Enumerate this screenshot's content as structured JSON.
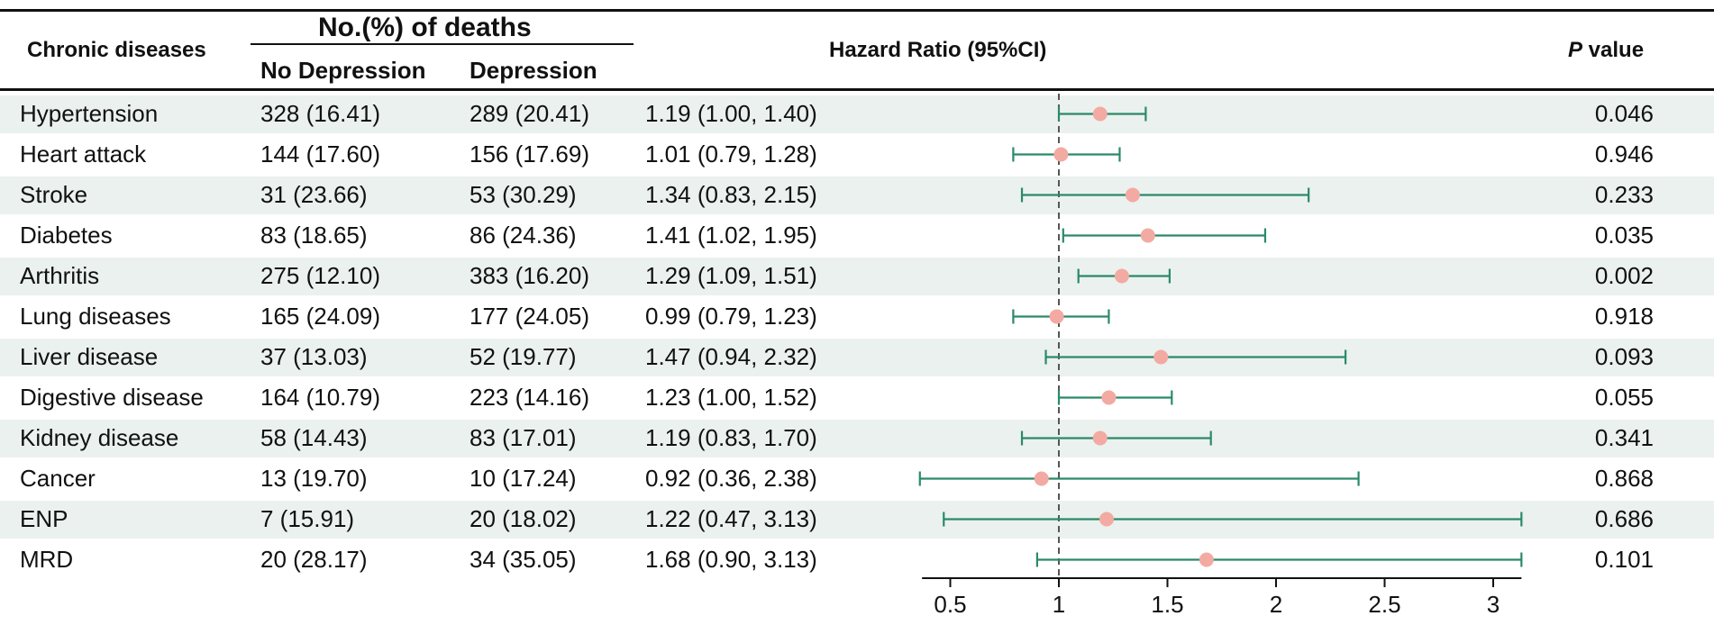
{
  "header": {
    "col_disease": "Chronic diseases",
    "group_title": "No.(%) of deaths",
    "col_no_dep": "No Depression",
    "col_dep": "Depression",
    "col_hr": "Hazard Ratio (95%CI)",
    "col_p_italic": "P",
    "col_p_rest": " value"
  },
  "colors": {
    "stripe": "#ebf1ef",
    "ci_line": "#2a8a68",
    "point": "#f2aaa2",
    "ref_line": "#555555"
  },
  "rows": [
    {
      "disease": "Hypertension",
      "no_dep": "328 (16.41)",
      "dep": "289 (20.41)",
      "hr_text": "1.19 (1.00, 1.40)",
      "p": "0.046"
    },
    {
      "disease": "Heart attack",
      "no_dep": "144 (17.60)",
      "dep": "156 (17.69)",
      "hr_text": "1.01 (0.79, 1.28)",
      "p": "0.946"
    },
    {
      "disease": "Stroke",
      "no_dep": "31 (23.66)",
      "dep": "53 (30.29)",
      "hr_text": "1.34 (0.83, 2.15)",
      "p": "0.233"
    },
    {
      "disease": "Diabetes",
      "no_dep": "83 (18.65)",
      "dep": "86 (24.36)",
      "hr_text": "1.41 (1.02, 1.95)",
      "p": "0.035"
    },
    {
      "disease": "Arthritis",
      "no_dep": "275 (12.10)",
      "dep": "383 (16.20)",
      "hr_text": "1.29 (1.09, 1.51)",
      "p": "0.002"
    },
    {
      "disease": "Lung diseases",
      "no_dep": "165 (24.09)",
      "dep": "177 (24.05)",
      "hr_text": "0.99 (0.79, 1.23)",
      "p": "0.918"
    },
    {
      "disease": "Liver disease",
      "no_dep": "37 (13.03)",
      "dep": "52 (19.77)",
      "hr_text": "1.47 (0.94, 2.32)",
      "p": "0.093"
    },
    {
      "disease": "Digestive disease",
      "no_dep": "164 (10.79)",
      "dep": "223 (14.16)",
      "hr_text": "1.23 (1.00, 1.52)",
      "p": "0.055"
    },
    {
      "disease": "Kidney disease",
      "no_dep": "58 (14.43)",
      "dep": "83 (17.01)",
      "hr_text": "1.19 (0.83, 1.70)",
      "p": "0.341"
    },
    {
      "disease": "Cancer",
      "no_dep": "13 (19.70)",
      "dep": "10 (17.24)",
      "hr_text": "0.92 (0.36, 2.38)",
      "p": "0.868"
    },
    {
      "disease": "ENP",
      "no_dep": "7 (15.91)",
      "dep": "20 (18.02)",
      "hr_text": "1.22 (0.47, 3.13)",
      "p": "0.686"
    },
    {
      "disease": "MRD",
      "no_dep": "20 (28.17)",
      "dep": "34 (35.05)",
      "hr_text": "1.68 (0.90, 3.13)",
      "p": "0.101"
    }
  ],
  "chart_data": {
    "type": "forest",
    "title": "Hazard Ratio (95%CI)",
    "categories": [
      "Hypertension",
      "Heart attack",
      "Stroke",
      "Diabetes",
      "Arthritis",
      "Lung diseases",
      "Liver disease",
      "Digestive disease",
      "Kidney disease",
      "Cancer",
      "ENP",
      "MRD"
    ],
    "hr": [
      1.19,
      1.01,
      1.34,
      1.41,
      1.29,
      0.99,
      1.47,
      1.23,
      1.19,
      0.92,
      1.22,
      1.68
    ],
    "lower": [
      1.0,
      0.79,
      0.83,
      1.02,
      1.09,
      0.79,
      0.94,
      1.0,
      0.83,
      0.36,
      0.47,
      0.9
    ],
    "upper": [
      1.4,
      1.28,
      2.15,
      1.95,
      1.51,
      1.23,
      2.32,
      1.52,
      1.7,
      2.38,
      3.13,
      3.13
    ],
    "reference": 1,
    "xlim": [
      0.37,
      3.13
    ],
    "xticks": [
      0.5,
      1,
      1.5,
      2,
      2.5,
      3
    ],
    "xtick_labels": [
      "0.5",
      "1",
      "1.5",
      "2",
      "2.5",
      "3"
    ]
  }
}
